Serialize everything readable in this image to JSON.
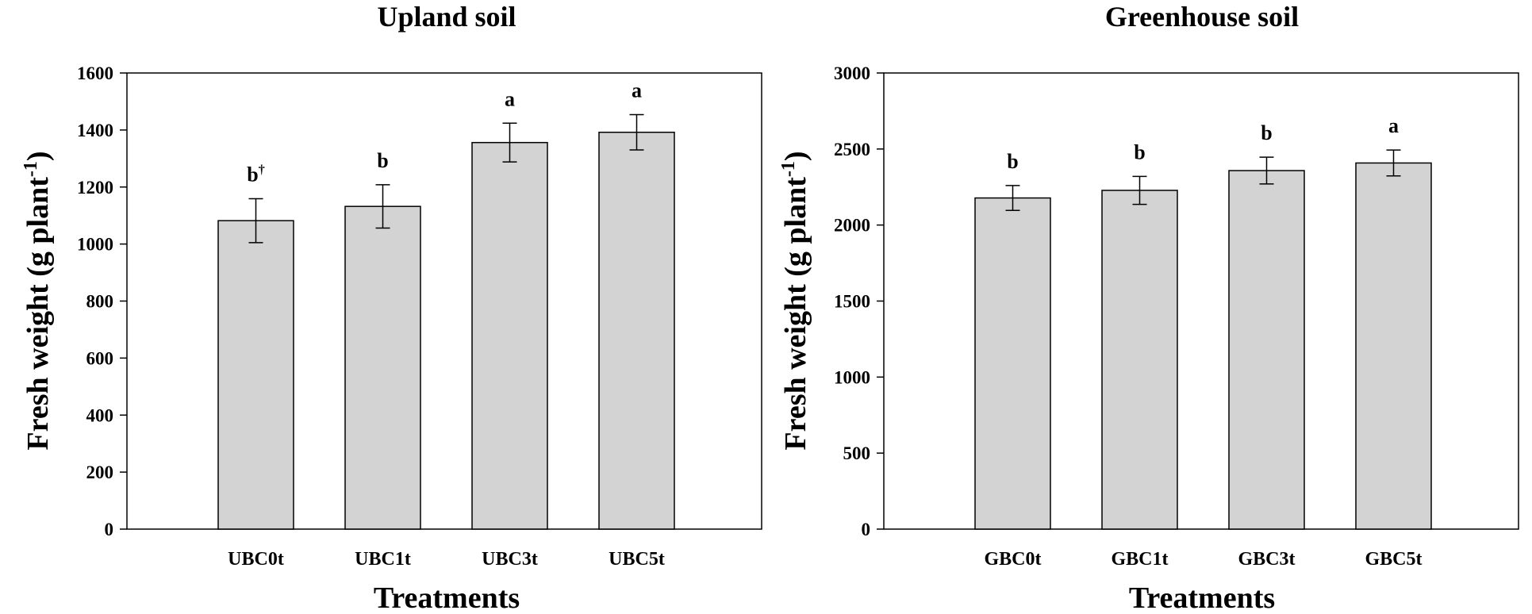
{
  "chart_data": [
    {
      "type": "bar",
      "title": "Upland soil",
      "xlabel": "Treatments",
      "ylabel": "Fresh weight (g plant",
      "ylabel_sup": "-1",
      "ylabel_close": ")",
      "ylim": [
        0,
        1600
      ],
      "yticks": [
        0,
        200,
        400,
        600,
        800,
        1000,
        1200,
        1400,
        1600
      ],
      "categories": [
        "UBC0t",
        "UBC1t",
        "UBC3t",
        "UBC5t"
      ],
      "values": [
        1082,
        1132,
        1356,
        1392
      ],
      "errors": [
        77,
        76,
        68,
        62
      ],
      "significance": [
        "b",
        "b",
        "a",
        "a"
      ],
      "significance_sup": [
        "†",
        "",
        "",
        ""
      ],
      "grid": false,
      "bar_color": "#d3d3d3"
    },
    {
      "type": "bar",
      "title": "Greenhouse soil",
      "xlabel": "Treatments",
      "ylabel": "Fresh weight (g plant",
      "ylabel_sup": "-1",
      "ylabel_close": ")",
      "ylim": [
        0,
        3000
      ],
      "yticks": [
        0,
        500,
        1000,
        1500,
        2000,
        2500,
        3000
      ],
      "categories": [
        "GBC0t",
        "GBC1t",
        "GBC3t",
        "GBC5t"
      ],
      "values": [
        2178,
        2228,
        2358,
        2408
      ],
      "errors": [
        82,
        92,
        88,
        85
      ],
      "significance": [
        "b",
        "b",
        "b",
        "a"
      ],
      "significance_sup": [
        "",
        "",
        "",
        ""
      ],
      "grid": false,
      "bar_color": "#d3d3d3"
    }
  ]
}
